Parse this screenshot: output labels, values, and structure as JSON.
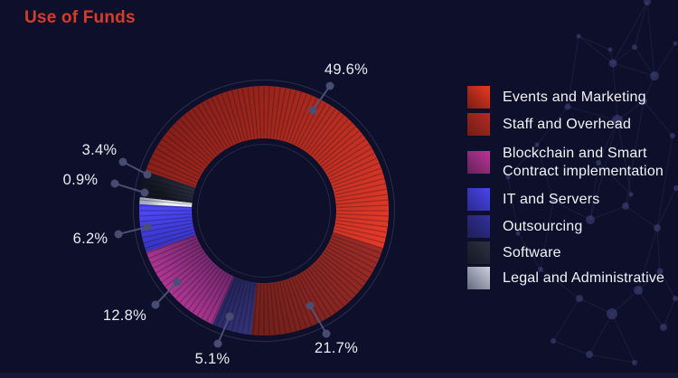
{
  "title": "Use of Funds",
  "colors": {
    "accent": "#d93b2b",
    "background": "#0e102b",
    "leader_line": "#50547a",
    "leader_dot": "#4a4f75",
    "label_text": "#e9ebf3",
    "legend_text": "#f2f3f8"
  },
  "chart_data": {
    "type": "pie",
    "style": "donut",
    "title": "Use of Funds",
    "direction": "clockwise",
    "start_angle_deg": 288.5,
    "legend_position": "right",
    "slices": [
      {
        "label": "Events and Marketing",
        "value": 49.6,
        "pct_label": "49.6%",
        "color_dark": "#871f19",
        "color_bright": "#e63a28"
      },
      {
        "label": "Staff and Overhead",
        "value": 21.7,
        "pct_label": "21.7%",
        "color_dark": "#731f1b",
        "color_bright": "#9e2c26"
      },
      {
        "label": "Outsourcing",
        "value": 5.1,
        "pct_label": "5.1%",
        "color_dark": "#262459",
        "color_bright": "#343279"
      },
      {
        "label": "Blockchain and Smart Contract implementation",
        "value": 12.8,
        "pct_label": "12.8%",
        "color_dark": "#4b1e52",
        "color_bright": "#c43ba0"
      },
      {
        "label": "IT and Servers",
        "value": 6.2,
        "pct_label": "6.2%",
        "color_dark": "#2b29a2",
        "color_bright": "#4d45f1"
      },
      {
        "label": "Legal and Administrative",
        "value": 0.9,
        "pct_label": "0.9%",
        "color_dark": "#a6abbd",
        "color_bright": "#eef0f4"
      },
      {
        "label": "Software",
        "value": 3.4,
        "pct_label": "3.4%",
        "color_dark": "#13151f",
        "color_bright": "#3c4153"
      }
    ],
    "legend": [
      {
        "label": "Events and Marketing",
        "color_dark": "#7c1c13",
        "color_bright": "#e73b20"
      },
      {
        "label": "Staff and Overhead",
        "color_dark": "#6f1d18",
        "color_bright": "#b52b22"
      },
      {
        "label": "Blockchain and Smart Contract implementation",
        "color_dark": "#622258",
        "color_bright": "#bb3598"
      },
      {
        "label": "IT and Servers",
        "color_dark": "#2b2a8c",
        "color_bright": "#4945ef"
      },
      {
        "label": "Outsourcing",
        "color_dark": "#1e1e55",
        "color_bright": "#32319c"
      },
      {
        "label": "Software",
        "color_dark": "#141723",
        "color_bright": "#2d3242"
      },
      {
        "label": "Legal and Administrative",
        "color_dark": "#646a7e",
        "color_bright": "#ccd1dd"
      }
    ]
  }
}
